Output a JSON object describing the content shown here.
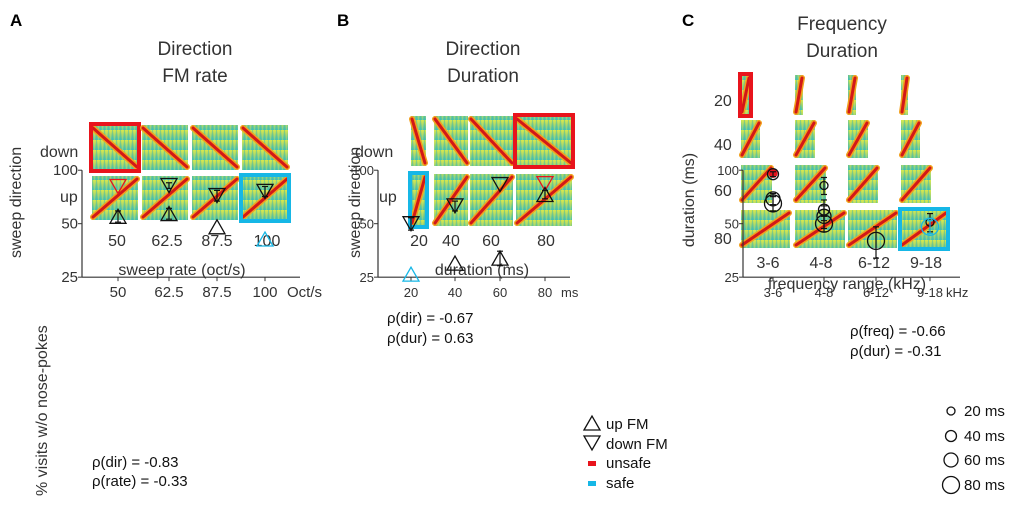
{
  "panels": {
    "A": {
      "label": "A",
      "title": [
        "Direction",
        "FM rate"
      ],
      "row_label": "sweep direction",
      "rows": [
        "down",
        "up"
      ],
      "cols": [
        "50",
        "62.5",
        "87.5",
        "100"
      ],
      "col_axis_label": "sweep rate (oct/s)"
    },
    "B": {
      "label": "B",
      "title": [
        "Direction",
        "Duration"
      ],
      "row_label": "sweep direction",
      "rows": [
        "down",
        "up"
      ],
      "cols": [
        "20",
        "40",
        "60",
        "80"
      ],
      "col_axis_label": "duration (ms)"
    },
    "C": {
      "label": "C",
      "title": [
        "Frequency",
        "Duration"
      ],
      "row_label": "duration (ms)",
      "rows": [
        "20",
        "40",
        "60",
        "80"
      ],
      "cols": [
        "3-6",
        "4-8",
        "6-12",
        "9-18"
      ],
      "col_axis_label": "frequency range (kHz)"
    }
  },
  "legend_B": [
    {
      "shape": "up",
      "label": "up FM"
    },
    {
      "shape": "down",
      "label": "down FM"
    },
    {
      "shape": "square",
      "color": "#e8141c",
      "label": "unsafe"
    },
    {
      "shape": "square",
      "color": "#16b7e6",
      "label": "safe"
    }
  ],
  "legend_C": [
    "20 ms",
    "40 ms",
    "60 ms",
    "80 ms"
  ],
  "colors": {
    "unsafe": "#e8141c",
    "safe": "#16b7e6",
    "normal": "#111111"
  },
  "chart_data": [
    {
      "type": "scatter",
      "ylabel": "% visits w/o nose-pokes",
      "ylim": [
        25,
        100
      ],
      "yticks": [
        "25",
        "50",
        "100"
      ],
      "categories": [
        "50",
        "62.5",
        "87.5",
        "100"
      ],
      "x_unit": "Oct/s",
      "series": [
        {
          "name": "down FM",
          "values": [
            81,
            82,
            72,
            76
          ],
          "errors": [
            0,
            3,
            5,
            5
          ],
          "status": [
            "unsafe",
            "normal",
            "normal",
            "normal"
          ]
        },
        {
          "name": "up FM",
          "values": [
            55,
            57,
            48,
            41
          ],
          "errors": [
            4,
            4,
            0,
            0
          ],
          "status": [
            "normal",
            "normal",
            "normal",
            "safe"
          ]
        }
      ],
      "annotations": [
        "ρ(dir) = -0.83",
        "ρ(rate) = -0.33"
      ]
    },
    {
      "type": "scatter",
      "ylim": [
        25,
        100
      ],
      "yticks": [
        "25",
        "50",
        "100"
      ],
      "categories": [
        "20",
        "40",
        "60",
        "80"
      ],
      "x_unit": "ms",
      "series": [
        {
          "name": "down FM",
          "values": [
            50,
            63,
            83,
            84
          ],
          "errors": [
            4,
            4,
            0,
            0
          ],
          "status": [
            "normal",
            "normal",
            "normal",
            "unsafe"
          ]
        },
        {
          "name": "up FM",
          "values": [
            26,
            30,
            32,
            73
          ],
          "errors": [
            0,
            0,
            3,
            4
          ],
          "status": [
            "safe",
            "normal",
            "normal",
            "normal"
          ]
        }
      ],
      "annotations": [
        "ρ(dir) = -0.67",
        "ρ(dur) = 0.63"
      ]
    },
    {
      "type": "scatter",
      "ylim": [
        25,
        100
      ],
      "yticks": [
        "25",
        "50",
        "100"
      ],
      "categories": [
        "3-6",
        "4-8",
        "6-12",
        "9-18"
      ],
      "x_unit": "kHz",
      "points": [
        {
          "cat": "3-6",
          "dur": "20 ms",
          "value": 96,
          "error": 0,
          "status": "unsafe"
        },
        {
          "cat": "3-6",
          "dur": "40 ms",
          "value": 95,
          "error": 3,
          "status": "normal"
        },
        {
          "cat": "3-6",
          "dur": "60 ms",
          "value": 69,
          "error": 5,
          "status": "normal"
        },
        {
          "cat": "3-6",
          "dur": "80 ms",
          "value": 65,
          "error": 6,
          "status": "normal"
        },
        {
          "cat": "4-8",
          "dur": "20 ms",
          "value": 82,
          "error": 9,
          "status": "normal"
        },
        {
          "cat": "4-8",
          "dur": "40 ms",
          "value": 60,
          "error": 8,
          "status": "normal"
        },
        {
          "cat": "4-8",
          "dur": "60 ms",
          "value": 55,
          "error": 8,
          "status": "normal"
        },
        {
          "cat": "4-8",
          "dur": "80 ms",
          "value": 50,
          "error": 5,
          "status": "normal"
        },
        {
          "cat": "6-12",
          "dur": "80 ms",
          "value": 40,
          "error": 8,
          "status": "normal"
        },
        {
          "cat": "9-18",
          "dur": "20 ms",
          "value": 51,
          "error": 6,
          "status": "normal"
        },
        {
          "cat": "9-18",
          "dur": "80 ms",
          "value": 48,
          "error": 4,
          "status": "safe"
        }
      ],
      "annotations": [
        "ρ(freq) = -0.66",
        "ρ(dur) = -0.31"
      ]
    }
  ]
}
